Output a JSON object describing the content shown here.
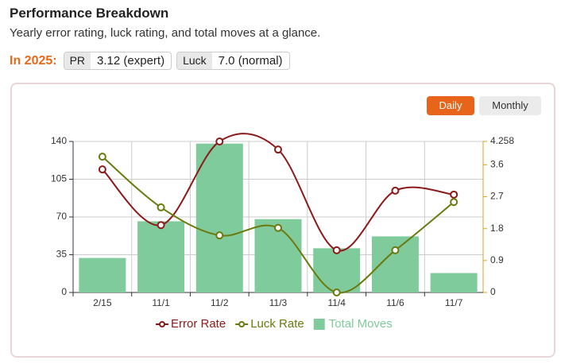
{
  "header": {
    "title": "Performance Breakdown",
    "subtitle": "Yearly error rating, luck rating, and total moves at a glance."
  },
  "stats": {
    "label": "In 2025:",
    "items": [
      {
        "name": "PR",
        "value": "3.12 (expert)"
      },
      {
        "name": "Luck",
        "value": "7.0 (normal)"
      }
    ]
  },
  "buttons": [
    "Daily",
    "Monthly"
  ],
  "chart_data": {
    "type": "combo",
    "categories": [
      "2/15",
      "11/1",
      "11/2",
      "11/3",
      "11/4",
      "11/6",
      "11/7"
    ],
    "series": [
      {
        "name": "Error Rate",
        "type": "line",
        "axis": "y2",
        "color": "#8b1a1a",
        "values": [
          3.47,
          1.9,
          4.258,
          4.03,
          1.19,
          2.87,
          2.76
        ]
      },
      {
        "name": "Luck Rate",
        "type": "line",
        "axis": "y2",
        "color": "#6b7a0f",
        "values": [
          3.83,
          2.4,
          1.61,
          1.82,
          0,
          1.19,
          2.55
        ]
      },
      {
        "name": "Total Moves",
        "type": "bar",
        "axis": "y",
        "color": "#80cb9b",
        "values": [
          32,
          66,
          138,
          68,
          41,
          52,
          18
        ]
      }
    ],
    "ylim": [
      0,
      140
    ],
    "yticks": [
      0,
      35,
      70,
      105,
      140
    ],
    "y2lim": [
      0,
      4.258
    ],
    "y2ticks": [
      0,
      0.9,
      1.8,
      2.7,
      3.6,
      4.258
    ],
    "grid": true
  }
}
